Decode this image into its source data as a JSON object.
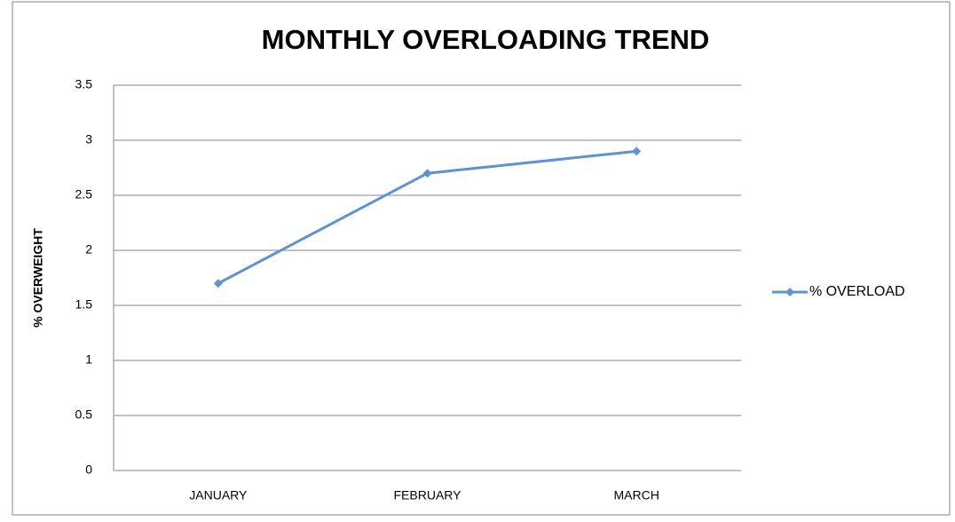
{
  "chart_data": {
    "type": "line",
    "title": "MONTHLY OVERLOADING TREND",
    "y_label": "% OVERWEIGHT",
    "categories": [
      "JANUARY",
      "FEBRUARY",
      "MARCH"
    ],
    "series": [
      {
        "name": "% OVERLOAD",
        "color": "#5b93d3",
        "values": [
          1.7,
          2.7,
          2.9
        ]
      }
    ],
    "ylim": [
      0,
      3.5
    ],
    "yticks": [
      0,
      0.5,
      1,
      1.5,
      2,
      2.5,
      3,
      3.5
    ],
    "grid": true,
    "legend": "right"
  }
}
